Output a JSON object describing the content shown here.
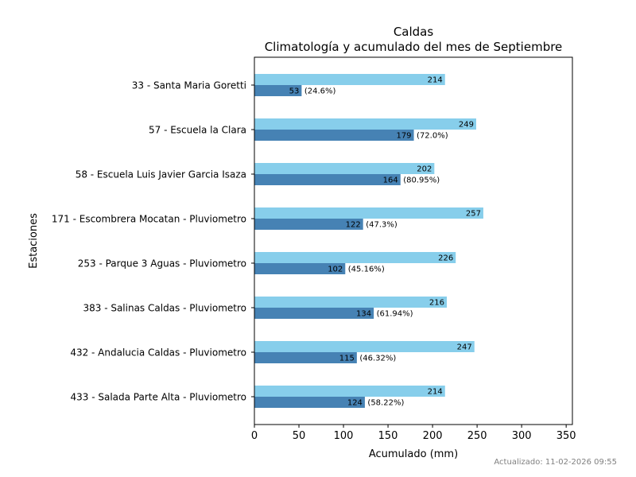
{
  "chart_data": {
    "type": "bar",
    "orientation": "horizontal",
    "title": "Caldas",
    "subtitle": "Climatología y acumulado del mes de Septiembre",
    "xlabel": "Acumulado (mm)",
    "ylabel": "Estaciones",
    "xlim": [
      0,
      357
    ],
    "xticks": [
      0,
      50,
      100,
      150,
      200,
      250,
      300,
      350
    ],
    "grid": false,
    "legend": "none",
    "categories": [
      "33 - Santa Maria Goretti",
      "57 - Escuela la Clara",
      "58 - Escuela Luis Javier Garcia Isaza",
      "171 - Escombrera Mocatan - Pluviometro",
      "253 - Parque 3 Aguas - Pluviometro",
      "383 - Salinas Caldas - Pluviometro",
      "432 - Andalucia Caldas - Pluviometro",
      "433 - Salada Parte Alta - Pluviometro"
    ],
    "series": [
      {
        "color": "#87CEEB",
        "values": [
          214,
          249,
          202,
          257,
          226,
          216,
          247,
          214
        ],
        "labels": [
          "214",
          "249",
          "202",
          "257",
          "226",
          "216",
          "247",
          "214"
        ]
      },
      {
        "color": "#4682B4",
        "values": [
          53,
          179,
          164,
          122,
          102,
          134,
          115,
          124
        ],
        "labels": [
          "53",
          "179",
          "164",
          "122",
          "102",
          "134",
          "115",
          "124"
        ],
        "percent_labels": [
          "(24.6%)",
          "(72.0%)",
          "(80.95%)",
          "(47.3%)",
          "(45.16%)",
          "(61.94%)",
          "(46.32%)",
          "(58.22%)"
        ]
      }
    ]
  },
  "footer": {
    "updated": "Actualizado: 11-02-2026 09:55"
  }
}
